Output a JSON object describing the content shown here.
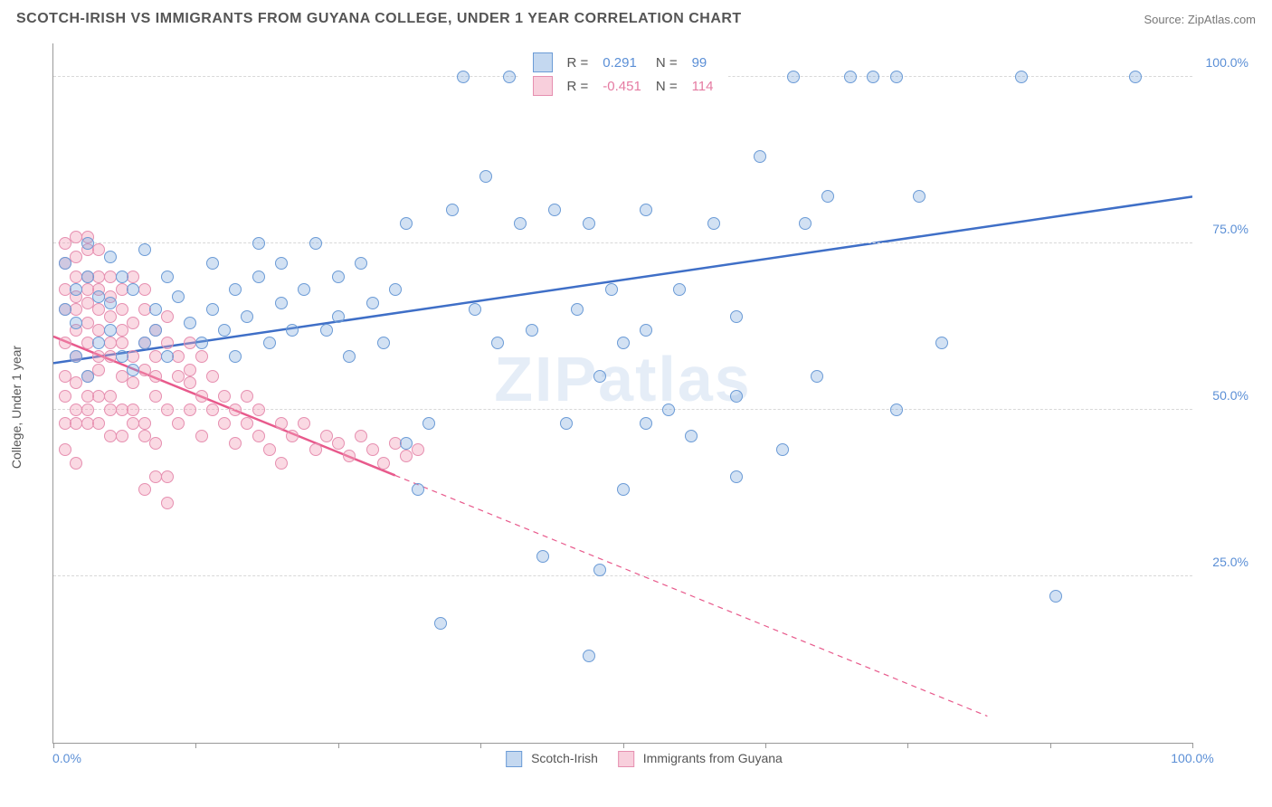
{
  "title": "SCOTCH-IRISH VS IMMIGRANTS FROM GUYANA COLLEGE, UNDER 1 YEAR CORRELATION CHART",
  "source": "Source: ZipAtlas.com",
  "ylabel": "College, Under 1 year",
  "watermark": "ZIPatlas",
  "xlim": [
    0,
    100
  ],
  "ylim": [
    0,
    105
  ],
  "xtick_positions": [
    0,
    12.5,
    25,
    37.5,
    50,
    62.5,
    75,
    87.5,
    100
  ],
  "xtick_labels": {
    "0": "0.0%",
    "100": "100.0%"
  },
  "ytick_positions": [
    25,
    50,
    75,
    100
  ],
  "ytick_labels": {
    "25": "25.0%",
    "50": "50.0%",
    "75": "75.0%",
    "100": "100.0%"
  },
  "grid_color": "#d8d8d8",
  "background_color": "#ffffff",
  "series": {
    "blue": {
      "label": "Scotch-Irish",
      "R": "0.291",
      "N": "99",
      "marker_fill": "rgba(125,168,222,0.35)",
      "marker_stroke": "#6b9bd6",
      "marker_size": 14,
      "line_color": "#3f6fc7",
      "line_width": 2.5,
      "trend": {
        "x1": 0,
        "y1": 57,
        "x2": 100,
        "y2": 82,
        "solid_until_x": 100
      },
      "points": [
        [
          1,
          65
        ],
        [
          1,
          72
        ],
        [
          2,
          58
        ],
        [
          2,
          63
        ],
        [
          2,
          68
        ],
        [
          3,
          55
        ],
        [
          3,
          70
        ],
        [
          3,
          75
        ],
        [
          4,
          60
        ],
        [
          4,
          67
        ],
        [
          5,
          62
        ],
        [
          5,
          73
        ],
        [
          5,
          66
        ],
        [
          6,
          58
        ],
        [
          6,
          70
        ],
        [
          7,
          56
        ],
        [
          7,
          68
        ],
        [
          8,
          60
        ],
        [
          8,
          74
        ],
        [
          9,
          62
        ],
        [
          9,
          65
        ],
        [
          10,
          58
        ],
        [
          10,
          70
        ],
        [
          11,
          67
        ],
        [
          12,
          63
        ],
        [
          13,
          60
        ],
        [
          14,
          65
        ],
        [
          14,
          72
        ],
        [
          15,
          62
        ],
        [
          16,
          68
        ],
        [
          16,
          58
        ],
        [
          17,
          64
        ],
        [
          18,
          70
        ],
        [
          18,
          75
        ],
        [
          19,
          60
        ],
        [
          20,
          66
        ],
        [
          20,
          72
        ],
        [
          21,
          62
        ],
        [
          22,
          68
        ],
        [
          23,
          75
        ],
        [
          24,
          62
        ],
        [
          25,
          70
        ],
        [
          25,
          64
        ],
        [
          26,
          58
        ],
        [
          27,
          72
        ],
        [
          28,
          66
        ],
        [
          29,
          60
        ],
        [
          30,
          68
        ],
        [
          31,
          45
        ],
        [
          31,
          78
        ],
        [
          32,
          38
        ],
        [
          33,
          48
        ],
        [
          34,
          18
        ],
        [
          35,
          80
        ],
        [
          36,
          100
        ],
        [
          37,
          65
        ],
        [
          38,
          85
        ],
        [
          39,
          60
        ],
        [
          40,
          100
        ],
        [
          41,
          78
        ],
        [
          42,
          62
        ],
        [
          43,
          28
        ],
        [
          43,
          100
        ],
        [
          44,
          80
        ],
        [
          45,
          48
        ],
        [
          46,
          65
        ],
        [
          47,
          78
        ],
        [
          48,
          55
        ],
        [
          49,
          68
        ],
        [
          50,
          100
        ],
        [
          50,
          38
        ],
        [
          52,
          62
        ],
        [
          52,
          48
        ],
        [
          52,
          80
        ],
        [
          54,
          50
        ],
        [
          55,
          68
        ],
        [
          56,
          46
        ],
        [
          58,
          78
        ],
        [
          47,
          13
        ],
        [
          48,
          26
        ],
        [
          50,
          60
        ],
        [
          60,
          52
        ],
        [
          62,
          88
        ],
        [
          64,
          44
        ],
        [
          65,
          100
        ],
        [
          60,
          64
        ],
        [
          60,
          40
        ],
        [
          66,
          78
        ],
        [
          67,
          55
        ],
        [
          68,
          82
        ],
        [
          70,
          100
        ],
        [
          72,
          100
        ],
        [
          74,
          100
        ],
        [
          76,
          82
        ],
        [
          78,
          60
        ],
        [
          74,
          50
        ],
        [
          88,
          22
        ],
        [
          85,
          100
        ],
        [
          95,
          100
        ]
      ]
    },
    "pink": {
      "label": "Immigrants from Guyana",
      "R": "-0.451",
      "N": "114",
      "marker_fill": "rgba(242,160,186,0.4)",
      "marker_stroke": "#e68fb0",
      "marker_size": 14,
      "line_color": "#e85a8c",
      "line_width": 2.5,
      "trend": {
        "x1": 0,
        "y1": 61,
        "x2": 82,
        "y2": 4,
        "solid_until_x": 30
      },
      "points": [
        [
          1,
          60
        ],
        [
          1,
          65
        ],
        [
          1,
          68
        ],
        [
          1,
          72
        ],
        [
          1,
          55
        ],
        [
          2,
          58
        ],
        [
          2,
          62
        ],
        [
          2,
          67
        ],
        [
          2,
          70
        ],
        [
          2,
          73
        ],
        [
          2,
          50
        ],
        [
          3,
          63
        ],
        [
          3,
          66
        ],
        [
          3,
          55
        ],
        [
          3,
          60
        ],
        [
          3,
          70
        ],
        [
          3,
          74
        ],
        [
          4,
          58
        ],
        [
          4,
          62
        ],
        [
          4,
          68
        ],
        [
          4,
          56
        ],
        [
          4,
          65
        ],
        [
          5,
          60
        ],
        [
          5,
          64
        ],
        [
          5,
          70
        ],
        [
          5,
          52
        ],
        [
          5,
          58
        ],
        [
          5,
          67
        ],
        [
          6,
          62
        ],
        [
          6,
          55
        ],
        [
          6,
          68
        ],
        [
          6,
          50
        ],
        [
          6,
          60
        ],
        [
          6,
          65
        ],
        [
          7,
          63
        ],
        [
          7,
          58
        ],
        [
          7,
          70
        ],
        [
          7,
          54
        ],
        [
          8,
          60
        ],
        [
          8,
          65
        ],
        [
          8,
          56
        ],
        [
          8,
          68
        ],
        [
          8,
          48
        ],
        [
          9,
          62
        ],
        [
          9,
          58
        ],
        [
          9,
          45
        ],
        [
          9,
          55
        ],
        [
          9,
          52
        ],
        [
          10,
          60
        ],
        [
          10,
          50
        ],
        [
          10,
          64
        ],
        [
          10,
          40
        ],
        [
          11,
          55
        ],
        [
          11,
          58
        ],
        [
          11,
          48
        ],
        [
          12,
          50
        ],
        [
          12,
          60
        ],
        [
          12,
          54
        ],
        [
          13,
          52
        ],
        [
          13,
          58
        ],
        [
          13,
          46
        ],
        [
          14,
          50
        ],
        [
          14,
          55
        ],
        [
          15,
          48
        ],
        [
          15,
          52
        ],
        [
          16,
          50
        ],
        [
          16,
          45
        ],
        [
          17,
          48
        ],
        [
          17,
          52
        ],
        [
          18,
          50
        ],
        [
          18,
          46
        ],
        [
          19,
          44
        ],
        [
          20,
          48
        ],
        [
          20,
          42
        ],
        [
          21,
          46
        ],
        [
          22,
          48
        ],
        [
          23,
          44
        ],
        [
          24,
          46
        ],
        [
          25,
          45
        ],
        [
          26,
          43
        ],
        [
          27,
          46
        ],
        [
          28,
          44
        ],
        [
          29,
          42
        ],
        [
          30,
          45
        ],
        [
          31,
          43
        ],
        [
          32,
          44
        ],
        [
          1,
          48
        ],
        [
          1,
          52
        ],
        [
          2,
          48
        ],
        [
          2,
          54
        ],
        [
          3,
          50
        ],
        [
          3,
          48
        ],
        [
          4,
          48
        ],
        [
          4,
          52
        ],
        [
          5,
          46
        ],
        [
          5,
          50
        ],
        [
          6,
          46
        ],
        [
          7,
          48
        ],
        [
          7,
          50
        ],
        [
          8,
          46
        ],
        [
          1,
          75
        ],
        [
          2,
          76
        ],
        [
          3,
          76
        ],
        [
          4,
          74
        ],
        [
          1,
          44
        ],
        [
          2,
          42
        ],
        [
          8,
          38
        ],
        [
          9,
          40
        ],
        [
          10,
          36
        ],
        [
          3,
          52
        ],
        [
          2,
          65
        ],
        [
          3,
          68
        ],
        [
          4,
          70
        ],
        [
          12,
          56
        ]
      ]
    }
  },
  "legend_bottom": {
    "items": [
      {
        "swatch": "blue",
        "label": "Scotch-Irish"
      },
      {
        "swatch": "pink",
        "label": "Immigrants from Guyana"
      }
    ]
  }
}
